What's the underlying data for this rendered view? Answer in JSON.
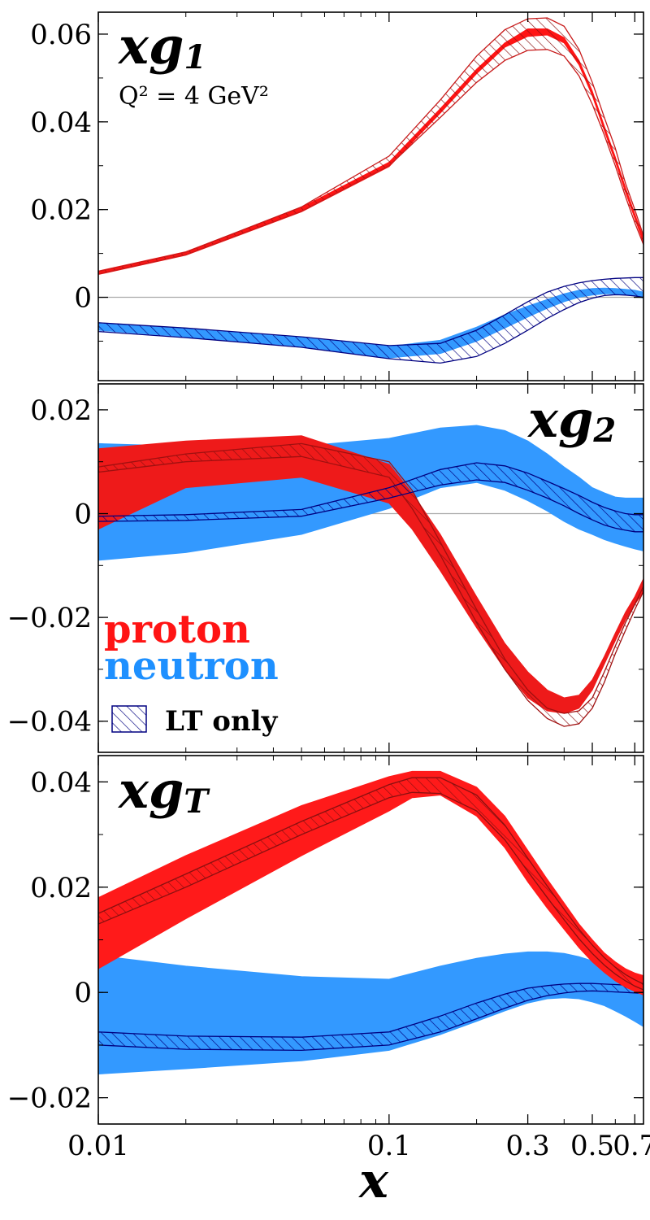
{
  "chart_data": [
    {
      "type": "area",
      "title": "xg1",
      "title_base": "xg",
      "title_sub": "1",
      "annotation": "Q² = 4 GeV²",
      "ylim": [
        -0.019,
        0.065
      ],
      "yticks": [
        0,
        0.02,
        0.04,
        0.06
      ],
      "ytick_labels": [
        "0",
        "0.02",
        "0.04",
        "0.06"
      ],
      "series": [
        {
          "name": "proton",
          "color": "#ff1414",
          "style": "band",
          "x": [
            0.01,
            0.02,
            0.05,
            0.1,
            0.15,
            0.2,
            0.25,
            0.3,
            0.35,
            0.4,
            0.45,
            0.5,
            0.55,
            0.6,
            0.65,
            0.7,
            0.75
          ],
          "lo": [
            0.0052,
            0.0096,
            0.0195,
            0.0298,
            0.042,
            0.051,
            0.057,
            0.0595,
            0.0598,
            0.058,
            0.053,
            0.046,
            0.038,
            0.031,
            0.024,
            0.018,
            0.0125
          ],
          "hi": [
            0.006,
            0.0104,
            0.0205,
            0.0308,
            0.043,
            0.052,
            0.058,
            0.0612,
            0.0612,
            0.0592,
            0.054,
            0.047,
            0.039,
            0.032,
            0.025,
            0.019,
            0.0135
          ]
        },
        {
          "name": "proton LT only",
          "color": "#c81a1a",
          "style": "hatch",
          "x": [
            0.01,
            0.02,
            0.05,
            0.1,
            0.15,
            0.2,
            0.25,
            0.3,
            0.35,
            0.4,
            0.45,
            0.5,
            0.55,
            0.6,
            0.65,
            0.7,
            0.75
          ],
          "lo": [
            0.0053,
            0.0097,
            0.0196,
            0.03,
            0.041,
            0.049,
            0.054,
            0.0563,
            0.0565,
            0.055,
            0.0505,
            0.044,
            0.037,
            0.03,
            0.023,
            0.017,
            0.012
          ],
          "hi": [
            0.0059,
            0.0103,
            0.0206,
            0.0322,
            0.045,
            0.055,
            0.061,
            0.0635,
            0.0637,
            0.0618,
            0.0565,
            0.049,
            0.041,
            0.034,
            0.026,
            0.02,
            0.014
          ]
        },
        {
          "name": "neutron",
          "color": "#3399ff",
          "style": "band",
          "x": [
            0.01,
            0.02,
            0.05,
            0.1,
            0.15,
            0.2,
            0.25,
            0.3,
            0.35,
            0.4,
            0.45,
            0.5,
            0.55,
            0.6,
            0.65,
            0.7,
            0.75
          ],
          "lo": [
            -0.0075,
            -0.009,
            -0.0112,
            -0.0138,
            -0.0128,
            -0.01,
            -0.007,
            -0.0045,
            -0.0025,
            -0.001,
            0.0,
            0.0005,
            0.0008,
            0.0008,
            0.0006,
            0.0003,
            -0.0002
          ],
          "hi": [
            -0.006,
            -0.0072,
            -0.0092,
            -0.0112,
            -0.0098,
            -0.0068,
            -0.004,
            -0.002,
            -0.0005,
            0.0008,
            0.0016,
            0.002,
            0.0021,
            0.002,
            0.0018,
            0.0016,
            0.0012
          ]
        },
        {
          "name": "neutron LT only",
          "color": "#000080",
          "style": "hatch",
          "x": [
            0.01,
            0.02,
            0.05,
            0.1,
            0.15,
            0.2,
            0.25,
            0.3,
            0.35,
            0.4,
            0.45,
            0.5,
            0.55,
            0.6,
            0.65,
            0.7,
            0.75
          ],
          "lo": [
            -0.0078,
            -0.0092,
            -0.0114,
            -0.014,
            -0.015,
            -0.0135,
            -0.0105,
            -0.0075,
            -0.0048,
            -0.0028,
            -0.0012,
            -0.0002,
            0.0004,
            0.0006,
            0.0005,
            0.0003,
            0.0
          ],
          "hi": [
            -0.0058,
            -0.007,
            -0.009,
            -0.011,
            -0.0105,
            -0.0075,
            -0.004,
            -0.001,
            0.0012,
            0.0025,
            0.0033,
            0.0038,
            0.0041,
            0.0043,
            0.0044,
            0.0045,
            0.0045
          ]
        }
      ]
    },
    {
      "type": "area",
      "title": "xg2",
      "title_base": "xg",
      "title_sub": "2",
      "ylim": [
        -0.046,
        0.025
      ],
      "yticks": [
        -0.04,
        -0.02,
        0,
        0.02
      ],
      "ytick_labels": [
        "−0.04",
        "−0.02",
        "0",
        "0.02"
      ],
      "series": [
        {
          "name": "neutron",
          "color": "#3399ff",
          "style": "band",
          "x": [
            0.01,
            0.02,
            0.05,
            0.1,
            0.15,
            0.2,
            0.25,
            0.3,
            0.35,
            0.4,
            0.45,
            0.5,
            0.55,
            0.6,
            0.65,
            0.7,
            0.75
          ],
          "lo": [
            -0.009,
            -0.0075,
            -0.004,
            0.001,
            0.005,
            0.006,
            0.0045,
            0.0025,
            0.0005,
            -0.0015,
            -0.003,
            -0.004,
            -0.005,
            -0.0057,
            -0.0063,
            -0.0068,
            -0.0072
          ],
          "hi": [
            0.0135,
            0.013,
            0.013,
            0.0145,
            0.0165,
            0.017,
            0.016,
            0.014,
            0.0115,
            0.009,
            0.007,
            0.005,
            0.004,
            0.0032,
            0.003,
            0.003,
            0.003
          ]
        },
        {
          "name": "proton",
          "color": "#ee1a1a",
          "style": "band",
          "x": [
            0.01,
            0.02,
            0.05,
            0.1,
            0.12,
            0.15,
            0.2,
            0.25,
            0.3,
            0.35,
            0.4,
            0.45,
            0.5,
            0.55,
            0.6,
            0.65,
            0.7,
            0.75
          ],
          "lo": [
            -0.003,
            0.005,
            0.007,
            0.002,
            -0.003,
            -0.011,
            -0.022,
            -0.03,
            -0.0355,
            -0.038,
            -0.0385,
            -0.0375,
            -0.034,
            -0.029,
            -0.0245,
            -0.0205,
            -0.0175,
            -0.015
          ],
          "hi": [
            0.0125,
            0.014,
            0.015,
            0.0095,
            0.004,
            -0.004,
            -0.016,
            -0.025,
            -0.0305,
            -0.034,
            -0.0355,
            -0.035,
            -0.032,
            -0.0275,
            -0.023,
            -0.019,
            -0.016,
            -0.0125
          ]
        },
        {
          "name": "proton LT only",
          "color": "#a01010",
          "style": "hatch",
          "x": [
            0.01,
            0.02,
            0.05,
            0.1,
            0.12,
            0.15,
            0.2,
            0.25,
            0.3,
            0.35,
            0.4,
            0.45,
            0.5,
            0.55,
            0.6,
            0.65,
            0.7,
            0.75
          ],
          "lo": [
            0.008,
            0.01,
            0.011,
            0.007,
            0.001,
            -0.008,
            -0.021,
            -0.03,
            -0.036,
            -0.0395,
            -0.041,
            -0.0405,
            -0.0375,
            -0.0325,
            -0.027,
            -0.0225,
            -0.0185,
            -0.015
          ],
          "hi": [
            0.009,
            0.0115,
            0.0135,
            0.01,
            0.0045,
            -0.0055,
            -0.0185,
            -0.028,
            -0.034,
            -0.0375,
            -0.0385,
            -0.038,
            -0.0355,
            -0.0305,
            -0.0255,
            -0.021,
            -0.0175,
            -0.014
          ]
        },
        {
          "name": "neutron LT only",
          "color": "#000080",
          "style": "hatch",
          "x": [
            0.01,
            0.02,
            0.05,
            0.1,
            0.15,
            0.2,
            0.25,
            0.3,
            0.35,
            0.4,
            0.45,
            0.5,
            0.55,
            0.6,
            0.65,
            0.7,
            0.75
          ],
          "lo": [
            -0.0015,
            -0.0013,
            -0.0005,
            0.003,
            0.0055,
            0.0065,
            0.006,
            0.0045,
            0.003,
            0.0015,
            0.0,
            -0.0012,
            -0.0022,
            -0.0028,
            -0.0032,
            -0.0035,
            -0.0035
          ],
          "hi": [
            -0.0005,
            -0.0002,
            0.0008,
            0.005,
            0.0085,
            0.0098,
            0.0092,
            0.0078,
            0.0062,
            0.0048,
            0.0035,
            0.0022,
            0.0012,
            0.0005,
            0.0,
            -0.0002,
            -0.0002
          ]
        }
      ]
    },
    {
      "type": "area",
      "title": "xgT",
      "title_base": "xg",
      "title_sub": "T",
      "ylim": [
        -0.025,
        0.045
      ],
      "yticks": [
        -0.02,
        0,
        0.02,
        0.04
      ],
      "ytick_labels": [
        "−0.02",
        "0",
        "0.02",
        "0.04"
      ],
      "series": [
        {
          "name": "neutron",
          "color": "#3399ff",
          "style": "band",
          "x": [
            0.01,
            0.02,
            0.05,
            0.1,
            0.15,
            0.2,
            0.25,
            0.3,
            0.35,
            0.4,
            0.45,
            0.5,
            0.55,
            0.6,
            0.65,
            0.7,
            0.75
          ],
          "lo": [
            -0.0155,
            -0.0145,
            -0.013,
            -0.011,
            -0.008,
            -0.0055,
            -0.0035,
            -0.002,
            -0.0012,
            -0.001,
            -0.0012,
            -0.0018,
            -0.0025,
            -0.0035,
            -0.0045,
            -0.0055,
            -0.0065
          ],
          "hi": [
            0.007,
            0.005,
            0.003,
            0.0025,
            0.005,
            0.0065,
            0.0073,
            0.0077,
            0.0077,
            0.0074,
            0.0068,
            0.006,
            0.0052,
            0.0045,
            0.0038,
            0.0032,
            0.0028
          ]
        },
        {
          "name": "neutron LT only",
          "color": "#000080",
          "style": "hatch",
          "x": [
            0.01,
            0.02,
            0.05,
            0.1,
            0.15,
            0.2,
            0.25,
            0.3,
            0.35,
            0.4,
            0.45,
            0.5,
            0.55,
            0.6,
            0.65,
            0.7,
            0.75
          ],
          "lo": [
            -0.01,
            -0.0108,
            -0.011,
            -0.01,
            -0.0075,
            -0.005,
            -0.003,
            -0.0015,
            -0.0006,
            -0.0001,
            0.0002,
            0.0003,
            0.0002,
            0.0001,
            0.0,
            -0.0001,
            -0.0002
          ],
          "hi": [
            -0.0075,
            -0.0083,
            -0.0085,
            -0.0075,
            -0.0045,
            -0.002,
            -0.0003,
            0.0008,
            0.0013,
            0.0016,
            0.0017,
            0.0017,
            0.0016,
            0.0015,
            0.0014,
            0.0013,
            0.0012
          ]
        },
        {
          "name": "proton",
          "color": "#ff1a1a",
          "style": "band",
          "x": [
            0.01,
            0.02,
            0.05,
            0.1,
            0.12,
            0.15,
            0.2,
            0.25,
            0.3,
            0.35,
            0.4,
            0.45,
            0.5,
            0.55,
            0.6,
            0.65,
            0.7,
            0.75
          ],
          "lo": [
            0.0045,
            0.014,
            0.026,
            0.0345,
            0.037,
            0.0375,
            0.0335,
            0.0275,
            0.021,
            0.016,
            0.012,
            0.0085,
            0.0058,
            0.0038,
            0.0022,
            0.001,
            0.0002,
            -0.0005
          ],
          "hi": [
            0.018,
            0.026,
            0.0355,
            0.041,
            0.042,
            0.042,
            0.039,
            0.0335,
            0.027,
            0.0215,
            0.017,
            0.013,
            0.01,
            0.0075,
            0.0058,
            0.0045,
            0.0037,
            0.0032
          ]
        },
        {
          "name": "proton LT only",
          "color": "#8a1010",
          "style": "hatch",
          "x": [
            0.01,
            0.02,
            0.05,
            0.1,
            0.12,
            0.15,
            0.2,
            0.25,
            0.3,
            0.35,
            0.4,
            0.45,
            0.5,
            0.55,
            0.6,
            0.65,
            0.7,
            0.75
          ],
          "lo": [
            0.013,
            0.02,
            0.03,
            0.037,
            0.038,
            0.0378,
            0.0345,
            0.029,
            0.023,
            0.018,
            0.0138,
            0.0102,
            0.0074,
            0.0052,
            0.0035,
            0.0022,
            0.0012,
            0.0005
          ],
          "hi": [
            0.015,
            0.0225,
            0.0325,
            0.0395,
            0.0408,
            0.0408,
            0.0375,
            0.0318,
            0.0255,
            0.0202,
            0.0158,
            0.012,
            0.009,
            0.0066,
            0.0048,
            0.0034,
            0.0024,
            0.0016
          ]
        }
      ]
    }
  ],
  "x_axis": {
    "label": "x",
    "scale": "log",
    "xlim": [
      0.01,
      0.75
    ],
    "ticks": [
      0.01,
      0.1,
      0.3,
      0.5,
      0.7
    ],
    "tick_labels": [
      "0.01",
      "0.1",
      "0.3",
      "0.5",
      "0.7"
    ]
  },
  "legend": {
    "proton_label": "proton",
    "proton_color": "#ff1414",
    "neutron_label": "neutron",
    "neutron_color": "#1e90ff",
    "lt_label": "LT only",
    "lt_color": "#000080"
  }
}
